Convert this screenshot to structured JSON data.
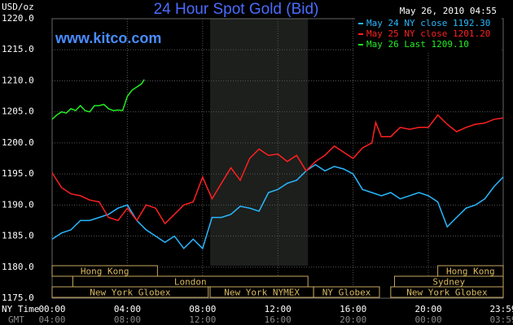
{
  "chart_data": {
    "type": "line",
    "title": "24 Hour Spot Gold (Bid)",
    "watermark": "www.kitco.com",
    "timestamp": "May 26, 2010 04:55",
    "y_label": "USD/oz",
    "x_row_label": "NY Time",
    "x2_row_label": "GMT",
    "background": "#000000",
    "grid": true,
    "xlim": [
      0,
      23.98
    ],
    "ylim": [
      1175,
      1220
    ],
    "xticks": [
      {
        "value": 0,
        "label": "00:00"
      },
      {
        "value": 4,
        "label": "04:00"
      },
      {
        "value": 8,
        "label": "08:00"
      },
      {
        "value": 12,
        "label": "12:00"
      },
      {
        "value": 16,
        "label": "16:00"
      },
      {
        "value": 20,
        "label": "20:00"
      },
      {
        "value": 23.98,
        "label": "23:59"
      }
    ],
    "gmt_tick_labels": [
      "04:00",
      "08:00",
      "12:00",
      "16:00",
      "20:00",
      "00:00",
      "03:59"
    ],
    "yticks": [
      {
        "value": 1175,
        "label": "1175.0"
      },
      {
        "value": 1180,
        "label": "1180.0"
      },
      {
        "value": 1185,
        "label": "1185.0"
      },
      {
        "value": 1190,
        "label": "1190.0"
      },
      {
        "value": 1195,
        "label": "1195.0"
      },
      {
        "value": 1200,
        "label": "1200.0"
      },
      {
        "value": 1205,
        "label": "1205.0"
      },
      {
        "value": 1210,
        "label": "1210.0"
      },
      {
        "value": 1215,
        "label": "1215.0"
      },
      {
        "value": 1220,
        "label": "1220.0"
      }
    ],
    "shaded_range": [
      8.4,
      13.6
    ],
    "session_rows": [
      [
        {
          "label": "Hong Kong",
          "start": 0,
          "end": 5.6
        },
        {
          "label": "Hong Kong",
          "start": 20.5,
          "end": 23.98
        }
      ],
      [
        {
          "label": "London",
          "start": 1.1,
          "end": 13.6
        },
        {
          "label": "Sydney",
          "start": 18.2,
          "end": 23.98
        }
      ],
      [
        {
          "label": "New York Globex",
          "start": 0,
          "end": 8.3
        },
        {
          "label": "New York NYMEX",
          "start": 8.4,
          "end": 13.9
        },
        {
          "label": "NY Globex",
          "start": 13.9,
          "end": 17.4
        },
        {
          "label": "New York Globex",
          "start": 18,
          "end": 23.98
        }
      ]
    ],
    "series": [
      {
        "name": "May 24 NY close 1192.30",
        "color": "#29b8ff",
        "x": [
          0,
          0.5,
          1,
          1.5,
          2,
          2.5,
          3,
          3.5,
          4,
          4.5,
          5,
          5.5,
          6,
          6.5,
          7,
          7.5,
          8,
          8.5,
          9,
          9.5,
          10,
          10.5,
          11,
          11.5,
          12,
          12.5,
          13,
          13.5,
          14,
          14.5,
          15,
          15.5,
          16,
          16.5,
          17,
          17.5,
          18,
          18.5,
          19,
          19.5,
          20,
          20.5,
          21,
          21.5,
          22,
          22.5,
          23,
          23.5,
          23.98
        ],
        "values": [
          1184.5,
          1185.5,
          1186,
          1187.5,
          1187.5,
          1188,
          1188.5,
          1189.5,
          1190,
          1187.5,
          1186,
          1185,
          1184,
          1185,
          1183,
          1184.5,
          1183,
          1188,
          1188,
          1188.5,
          1189.8,
          1189.5,
          1189,
          1192,
          1192.5,
          1193.5,
          1194,
          1195.5,
          1196.5,
          1195.5,
          1196.2,
          1195.8,
          1195,
          1192.5,
          1192,
          1191.5,
          1192,
          1191,
          1191.5,
          1192,
          1191.5,
          1190.5,
          1186.5,
          1188,
          1189.5,
          1190,
          1191,
          1193,
          1194.5
        ]
      },
      {
        "name": "May 25 NY close 1201.20",
        "color": "#ff2020",
        "x": [
          0,
          0.5,
          1,
          1.5,
          2,
          2.5,
          3,
          3.5,
          4,
          4.5,
          5,
          5.5,
          6,
          6.5,
          7,
          7.5,
          8,
          8.5,
          9,
          9.5,
          10,
          10.5,
          11,
          11.5,
          12,
          12.5,
          13,
          13.5,
          14,
          14.5,
          15,
          15.5,
          16,
          16.5,
          17,
          17.2,
          17.5,
          18,
          18.5,
          19,
          19.5,
          20,
          20.5,
          21,
          21.5,
          22,
          22.5,
          23,
          23.5,
          23.98
        ],
        "values": [
          1195.2,
          1192.8,
          1191.8,
          1191.5,
          1190.8,
          1190.5,
          1188,
          1187.5,
          1189.5,
          1187.5,
          1190,
          1189.5,
          1187,
          1188.5,
          1190,
          1190.5,
          1194.5,
          1191,
          1193.5,
          1196,
          1194,
          1197.5,
          1199,
          1198,
          1198.2,
          1197,
          1198,
          1195.5,
          1197,
          1198,
          1199.5,
          1198.5,
          1197.5,
          1199.2,
          1200,
          1203.3,
          1201,
          1201,
          1202.5,
          1202.2,
          1202.5,
          1202.5,
          1204.5,
          1203,
          1201.8,
          1202.5,
          1203,
          1203.2,
          1203.8,
          1204
        ]
      },
      {
        "name": "May 26 Last 1209.10",
        "color": "#22ee22",
        "x": [
          0,
          0.25,
          0.5,
          0.75,
          1,
          1.25,
          1.5,
          1.75,
          2,
          2.25,
          2.5,
          2.75,
          3,
          3.25,
          3.5,
          3.75,
          4,
          4.25,
          4.5,
          4.75,
          4.9
        ],
        "values": [
          1203.8,
          1204.5,
          1205,
          1204.8,
          1205.5,
          1205.2,
          1206,
          1205.2,
          1205,
          1206,
          1206,
          1206.2,
          1205.5,
          1205.2,
          1205.3,
          1205.2,
          1207.5,
          1208.5,
          1209,
          1209.5,
          1210.2
        ]
      }
    ]
  }
}
